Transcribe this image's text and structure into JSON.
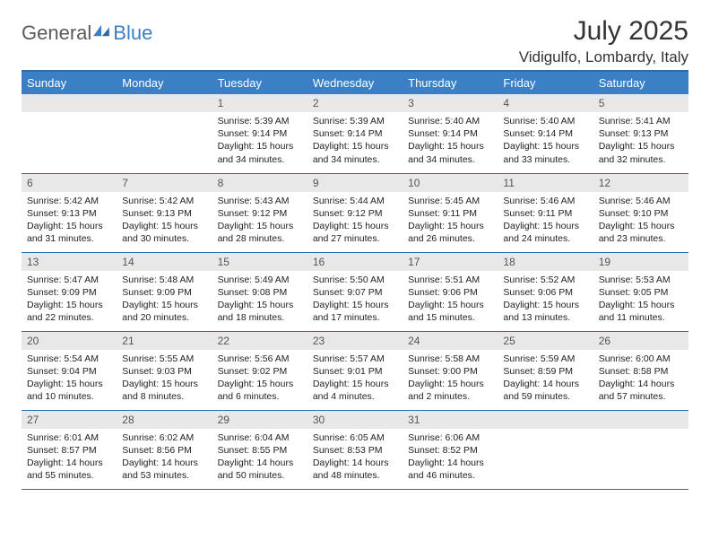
{
  "brand": {
    "text1": "General",
    "text2": "Blue"
  },
  "title": "July 2025",
  "location": "Vidigulfo, Lombardy, Italy",
  "colors": {
    "header_bg": "#3b7fc4",
    "rule": "#2c6aa8",
    "daynum_bg": "#e8e8e8",
    "text": "#222222"
  },
  "weekdays": [
    "Sunday",
    "Monday",
    "Tuesday",
    "Wednesday",
    "Thursday",
    "Friday",
    "Saturday"
  ],
  "weeks": [
    [
      null,
      null,
      {
        "n": "1",
        "sr": "5:39 AM",
        "ss": "9:14 PM",
        "dl": "15 hours and 34 minutes."
      },
      {
        "n": "2",
        "sr": "5:39 AM",
        "ss": "9:14 PM",
        "dl": "15 hours and 34 minutes."
      },
      {
        "n": "3",
        "sr": "5:40 AM",
        "ss": "9:14 PM",
        "dl": "15 hours and 34 minutes."
      },
      {
        "n": "4",
        "sr": "5:40 AM",
        "ss": "9:14 PM",
        "dl": "15 hours and 33 minutes."
      },
      {
        "n": "5",
        "sr": "5:41 AM",
        "ss": "9:13 PM",
        "dl": "15 hours and 32 minutes."
      }
    ],
    [
      {
        "n": "6",
        "sr": "5:42 AM",
        "ss": "9:13 PM",
        "dl": "15 hours and 31 minutes."
      },
      {
        "n": "7",
        "sr": "5:42 AM",
        "ss": "9:13 PM",
        "dl": "15 hours and 30 minutes."
      },
      {
        "n": "8",
        "sr": "5:43 AM",
        "ss": "9:12 PM",
        "dl": "15 hours and 28 minutes."
      },
      {
        "n": "9",
        "sr": "5:44 AM",
        "ss": "9:12 PM",
        "dl": "15 hours and 27 minutes."
      },
      {
        "n": "10",
        "sr": "5:45 AM",
        "ss": "9:11 PM",
        "dl": "15 hours and 26 minutes."
      },
      {
        "n": "11",
        "sr": "5:46 AM",
        "ss": "9:11 PM",
        "dl": "15 hours and 24 minutes."
      },
      {
        "n": "12",
        "sr": "5:46 AM",
        "ss": "9:10 PM",
        "dl": "15 hours and 23 minutes."
      }
    ],
    [
      {
        "n": "13",
        "sr": "5:47 AM",
        "ss": "9:09 PM",
        "dl": "15 hours and 22 minutes."
      },
      {
        "n": "14",
        "sr": "5:48 AM",
        "ss": "9:09 PM",
        "dl": "15 hours and 20 minutes."
      },
      {
        "n": "15",
        "sr": "5:49 AM",
        "ss": "9:08 PM",
        "dl": "15 hours and 18 minutes."
      },
      {
        "n": "16",
        "sr": "5:50 AM",
        "ss": "9:07 PM",
        "dl": "15 hours and 17 minutes."
      },
      {
        "n": "17",
        "sr": "5:51 AM",
        "ss": "9:06 PM",
        "dl": "15 hours and 15 minutes."
      },
      {
        "n": "18",
        "sr": "5:52 AM",
        "ss": "9:06 PM",
        "dl": "15 hours and 13 minutes."
      },
      {
        "n": "19",
        "sr": "5:53 AM",
        "ss": "9:05 PM",
        "dl": "15 hours and 11 minutes."
      }
    ],
    [
      {
        "n": "20",
        "sr": "5:54 AM",
        "ss": "9:04 PM",
        "dl": "15 hours and 10 minutes."
      },
      {
        "n": "21",
        "sr": "5:55 AM",
        "ss": "9:03 PM",
        "dl": "15 hours and 8 minutes."
      },
      {
        "n": "22",
        "sr": "5:56 AM",
        "ss": "9:02 PM",
        "dl": "15 hours and 6 minutes."
      },
      {
        "n": "23",
        "sr": "5:57 AM",
        "ss": "9:01 PM",
        "dl": "15 hours and 4 minutes."
      },
      {
        "n": "24",
        "sr": "5:58 AM",
        "ss": "9:00 PM",
        "dl": "15 hours and 2 minutes."
      },
      {
        "n": "25",
        "sr": "5:59 AM",
        "ss": "8:59 PM",
        "dl": "14 hours and 59 minutes."
      },
      {
        "n": "26",
        "sr": "6:00 AM",
        "ss": "8:58 PM",
        "dl": "14 hours and 57 minutes."
      }
    ],
    [
      {
        "n": "27",
        "sr": "6:01 AM",
        "ss": "8:57 PM",
        "dl": "14 hours and 55 minutes."
      },
      {
        "n": "28",
        "sr": "6:02 AM",
        "ss": "8:56 PM",
        "dl": "14 hours and 53 minutes."
      },
      {
        "n": "29",
        "sr": "6:04 AM",
        "ss": "8:55 PM",
        "dl": "14 hours and 50 minutes."
      },
      {
        "n": "30",
        "sr": "6:05 AM",
        "ss": "8:53 PM",
        "dl": "14 hours and 48 minutes."
      },
      {
        "n": "31",
        "sr": "6:06 AM",
        "ss": "8:52 PM",
        "dl": "14 hours and 46 minutes."
      },
      null,
      null
    ]
  ],
  "labels": {
    "sunrise": "Sunrise:",
    "sunset": "Sunset:",
    "daylight": "Daylight:"
  }
}
